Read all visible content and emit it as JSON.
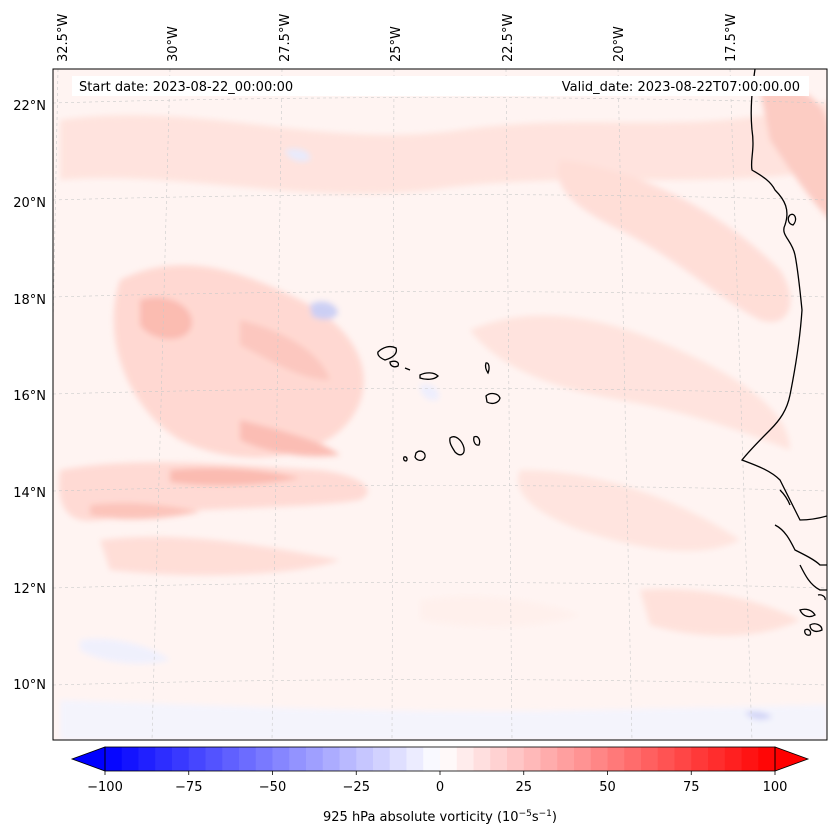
{
  "header": {
    "start_date": "Start date: 2023-08-22_00:00:00",
    "valid_date": "Valid_date: 2023-08-22T07:00:00.00"
  },
  "longitude_labels": [
    "32.5°W",
    "30°W",
    "27.5°W",
    "25°W",
    "22.5°W",
    "20°W",
    "17.5°W"
  ],
  "latitude_labels": [
    "22°N",
    "20°N",
    "18°N",
    "16°N",
    "14°N",
    "12°N",
    "10°N"
  ],
  "colorbar": {
    "label_prefix": "925 hPa absolute vorticity (10",
    "label_exp1": "−5",
    "label_mid": "s",
    "label_exp2": "−1",
    "label_suffix": ")",
    "ticks": [
      "−100",
      "−75",
      "−50",
      "−25",
      "0",
      "25",
      "50",
      "75",
      "100"
    ],
    "min": -100,
    "max": 100,
    "levels": 40,
    "negative_color": "#0000ff",
    "positive_color": "#ff0000"
  },
  "colors": {
    "field_background": "#fff5f3",
    "coastline": "#000000",
    "gridline": "#c8c8c8"
  }
}
